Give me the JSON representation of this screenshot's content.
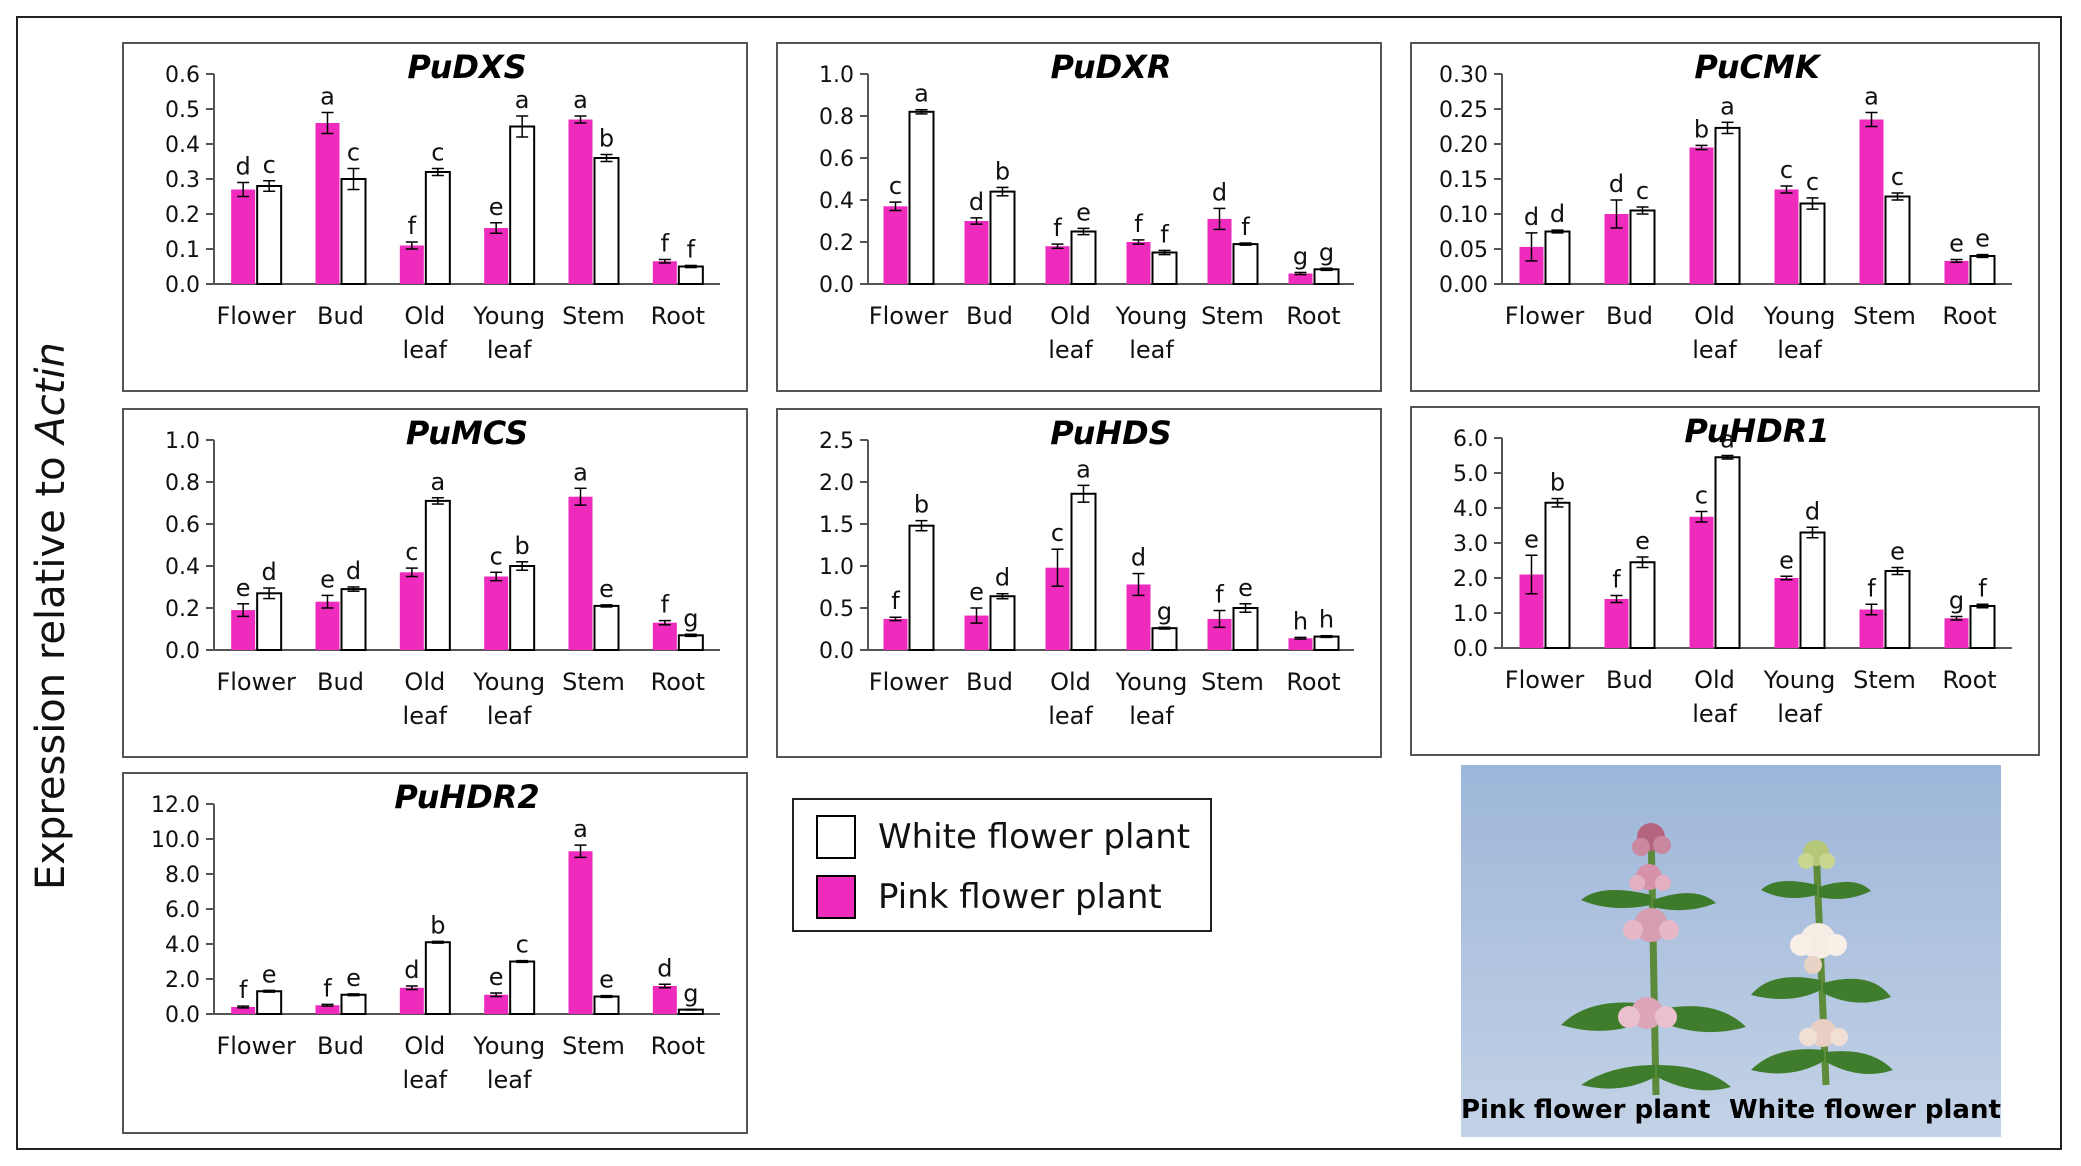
{
  "figure": {
    "y_axis_label_prefix": "Expression relative to ",
    "y_axis_label_gene": "Actin"
  },
  "legend": {
    "white": "White flower plant",
    "pink": "Pink flower plant"
  },
  "photo": {
    "caption_left": "Pink flower plant",
    "caption_right": "White flower plant"
  },
  "colors": {
    "pink": "#ee2bbd",
    "white": "#ffffff",
    "outline": "#000000"
  },
  "chart_data": [
    {
      "type": "bar",
      "title": "PuDXS",
      "categories": [
        "Flower",
        "Bud",
        "Old leaf",
        "Young leaf",
        "Stem",
        "Root"
      ],
      "ylim": [
        0,
        0.6
      ],
      "yticks": [
        "0.0",
        "0.1",
        "0.2",
        "0.3",
        "0.4",
        "0.5",
        "0.6"
      ],
      "series": [
        {
          "name": "Pink flower plant",
          "values": [
            0.27,
            0.46,
            0.11,
            0.16,
            0.47,
            0.065
          ],
          "errors": [
            0.02,
            0.03,
            0.01,
            0.015,
            0.01,
            0.005
          ],
          "letters": [
            "d",
            "a",
            "f",
            "e",
            "a",
            "f"
          ]
        },
        {
          "name": "White flower plant",
          "values": [
            0.28,
            0.3,
            0.32,
            0.45,
            0.36,
            0.05
          ],
          "errors": [
            0.015,
            0.03,
            0.01,
            0.03,
            0.01,
            0.003
          ],
          "letters": [
            "c",
            "c",
            "c",
            "a",
            "b",
            "f"
          ]
        }
      ]
    },
    {
      "type": "bar",
      "title": "PuDXR",
      "categories": [
        "Flower",
        "Bud",
        "Old leaf",
        "Young leaf",
        "Stem",
        "Root"
      ],
      "ylim": [
        0,
        1.0
      ],
      "yticks": [
        "0.0",
        "0.2",
        "0.4",
        "0.6",
        "0.8",
        "1.0"
      ],
      "series": [
        {
          "name": "Pink flower plant",
          "values": [
            0.37,
            0.3,
            0.18,
            0.2,
            0.31,
            0.05
          ],
          "errors": [
            0.02,
            0.015,
            0.01,
            0.01,
            0.05,
            0.005
          ],
          "letters": [
            "c",
            "d",
            "f",
            "f",
            "d",
            "g"
          ]
        },
        {
          "name": "White flower plant",
          "values": [
            0.82,
            0.44,
            0.25,
            0.15,
            0.19,
            0.07
          ],
          "errors": [
            0.01,
            0.02,
            0.015,
            0.01,
            0.005,
            0.005
          ],
          "letters": [
            "a",
            "b",
            "e",
            "f",
            "f",
            "g"
          ]
        }
      ]
    },
    {
      "type": "bar",
      "title": "PuCMK",
      "categories": [
        "Flower",
        "Bud",
        "Old leaf",
        "Young leaf",
        "Stem",
        "Root"
      ],
      "ylim": [
        0,
        0.3
      ],
      "yticks": [
        "0.00",
        "0.05",
        "0.10",
        "0.15",
        "0.20",
        "0.25",
        "0.30"
      ],
      "series": [
        {
          "name": "Pink flower plant",
          "values": [
            0.053,
            0.1,
            0.195,
            0.135,
            0.235,
            0.033
          ],
          "errors": [
            0.02,
            0.02,
            0.003,
            0.005,
            0.01,
            0.002
          ],
          "letters": [
            "d",
            "d",
            "b",
            "c",
            "a",
            "e"
          ]
        },
        {
          "name": "White flower plant",
          "values": [
            0.075,
            0.105,
            0.223,
            0.115,
            0.125,
            0.04
          ],
          "errors": [
            0.002,
            0.005,
            0.008,
            0.008,
            0.005,
            0.002
          ],
          "letters": [
            "d",
            "c",
            "a",
            "c",
            "c",
            "e"
          ]
        }
      ]
    },
    {
      "type": "bar",
      "title": "PuMCS",
      "categories": [
        "Flower",
        "Bud",
        "Old leaf",
        "Young leaf",
        "Stem",
        "Root"
      ],
      "ylim": [
        0,
        1.0
      ],
      "yticks": [
        "0.0",
        "0.2",
        "0.4",
        "0.6",
        "0.8",
        "1.0"
      ],
      "series": [
        {
          "name": "Pink flower plant",
          "values": [
            0.19,
            0.23,
            0.37,
            0.35,
            0.73,
            0.13
          ],
          "errors": [
            0.03,
            0.03,
            0.02,
            0.02,
            0.04,
            0.01
          ],
          "letters": [
            "e",
            "e",
            "c",
            "c",
            "a",
            "f"
          ]
        },
        {
          "name": "White flower plant",
          "values": [
            0.27,
            0.29,
            0.71,
            0.4,
            0.21,
            0.07
          ],
          "errors": [
            0.025,
            0.01,
            0.015,
            0.02,
            0.005,
            0.005
          ],
          "letters": [
            "d",
            "d",
            "a",
            "b",
            "e",
            "g"
          ]
        }
      ]
    },
    {
      "type": "bar",
      "title": "PuHDS",
      "categories": [
        "Flower",
        "Bud",
        "Old leaf",
        "Young leaf",
        "Stem",
        "Root"
      ],
      "ylim": [
        0,
        2.5
      ],
      "yticks": [
        "0.0",
        "0.5",
        "1.0",
        "1.5",
        "2.0",
        "2.5"
      ],
      "series": [
        {
          "name": "Pink flower plant",
          "values": [
            0.37,
            0.41,
            0.98,
            0.78,
            0.37,
            0.14
          ],
          "errors": [
            0.02,
            0.09,
            0.22,
            0.13,
            0.1,
            0.01
          ],
          "letters": [
            "f",
            "e",
            "c",
            "d",
            "f",
            "h"
          ]
        },
        {
          "name": "White flower plant",
          "values": [
            1.48,
            0.64,
            1.86,
            0.26,
            0.5,
            0.16
          ],
          "errors": [
            0.06,
            0.03,
            0.1,
            0.01,
            0.05,
            0.01
          ],
          "letters": [
            "b",
            "d",
            "a",
            "g",
            "e",
            "h"
          ]
        }
      ]
    },
    {
      "type": "bar",
      "title": "PuHDR1",
      "categories": [
        "Flower",
        "Bud",
        "Old leaf",
        "Young leaf",
        "Stem",
        "Root"
      ],
      "ylim": [
        0,
        6.0
      ],
      "yticks": [
        "0.0",
        "1.0",
        "2.0",
        "3.0",
        "4.0",
        "5.0",
        "6.0"
      ],
      "series": [
        {
          "name": "Pink flower plant",
          "values": [
            2.1,
            1.4,
            3.75,
            2.0,
            1.1,
            0.85
          ],
          "errors": [
            0.55,
            0.1,
            0.15,
            0.05,
            0.15,
            0.05
          ],
          "letters": [
            "e",
            "f",
            "c",
            "e",
            "f",
            "g"
          ]
        },
        {
          "name": "White flower plant",
          "values": [
            4.15,
            2.45,
            5.45,
            3.3,
            2.2,
            1.2
          ],
          "errors": [
            0.12,
            0.15,
            0.05,
            0.15,
            0.1,
            0.05
          ],
          "letters": [
            "b",
            "e",
            "a",
            "d",
            "e",
            "f"
          ]
        }
      ]
    },
    {
      "type": "bar",
      "title": "PuHDR2",
      "categories": [
        "Flower",
        "Bud",
        "Old leaf",
        "Young leaf",
        "Stem",
        "Root"
      ],
      "ylim": [
        0,
        12.0
      ],
      "yticks": [
        "0.0",
        "2.0",
        "4.0",
        "6.0",
        "8.0",
        "10.0",
        "12.0"
      ],
      "series": [
        {
          "name": "Pink flower plant",
          "values": [
            0.4,
            0.5,
            1.5,
            1.1,
            9.3,
            1.6
          ],
          "errors": [
            0.05,
            0.05,
            0.1,
            0.1,
            0.35,
            0.1
          ],
          "letters": [
            "f",
            "f",
            "d",
            "e",
            "a",
            "d"
          ]
        },
        {
          "name": "White flower plant",
          "values": [
            1.3,
            1.1,
            4.1,
            3.0,
            1.0,
            0.25
          ],
          "errors": [
            0.05,
            0.05,
            0.05,
            0.05,
            0.05,
            0.02
          ],
          "letters": [
            "e",
            "e",
            "b",
            "c",
            "e",
            "g"
          ]
        }
      ]
    }
  ]
}
